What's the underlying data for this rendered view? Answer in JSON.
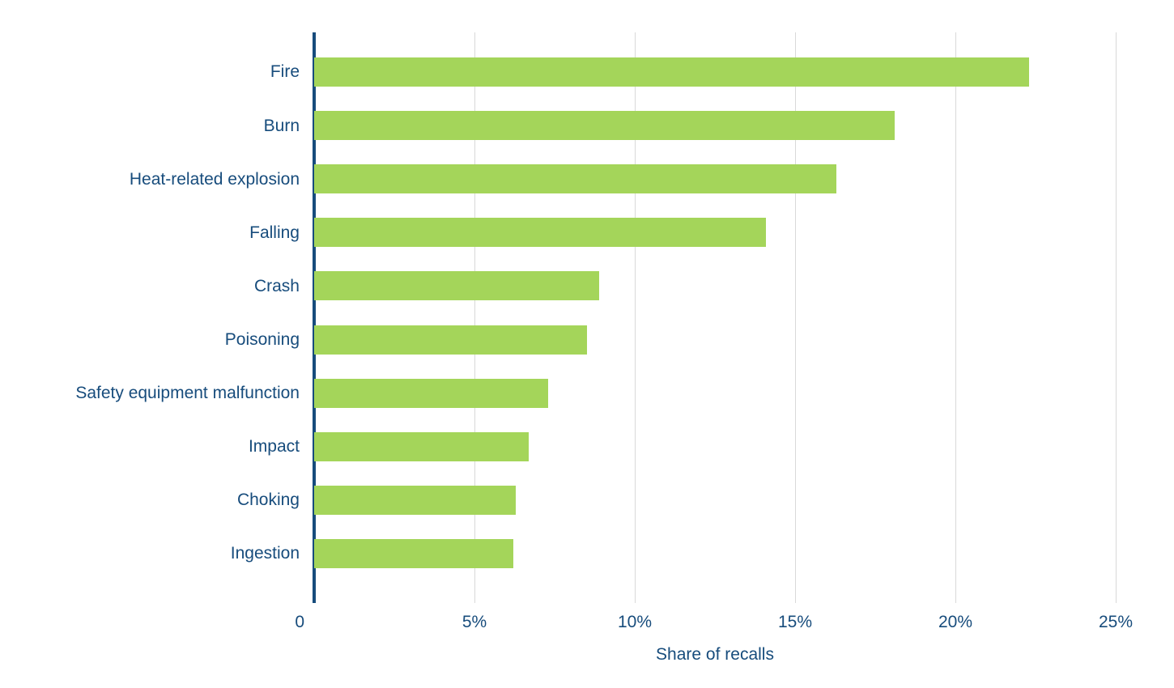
{
  "chart_data": {
    "type": "bar",
    "orientation": "horizontal",
    "title": "",
    "xlabel": "Share of recalls",
    "ylabel": "",
    "categories": [
      "Fire",
      "Burn",
      "Heat-related explosion",
      "Falling",
      "Crash",
      "Poisoning",
      "Safety equipment malfunction",
      "Impact",
      "Choking",
      "Ingestion"
    ],
    "values": [
      22.3,
      18.1,
      16.3,
      14.1,
      8.9,
      8.5,
      7.3,
      6.7,
      6.3,
      6.2
    ],
    "value_unit": "%",
    "xlim": [
      0,
      25
    ],
    "x_ticks": [
      "0",
      "5%",
      "10%",
      "15%",
      "20%",
      "25%"
    ],
    "x_tick_values": [
      0,
      5,
      10,
      15,
      20,
      25
    ],
    "grid": true,
    "legend": "none",
    "colors": {
      "bar": "#a4d55a",
      "axis": "#174c7c",
      "text": "#174c7c",
      "gridline": "#d9d9d9",
      "background": "#ffffff"
    }
  }
}
